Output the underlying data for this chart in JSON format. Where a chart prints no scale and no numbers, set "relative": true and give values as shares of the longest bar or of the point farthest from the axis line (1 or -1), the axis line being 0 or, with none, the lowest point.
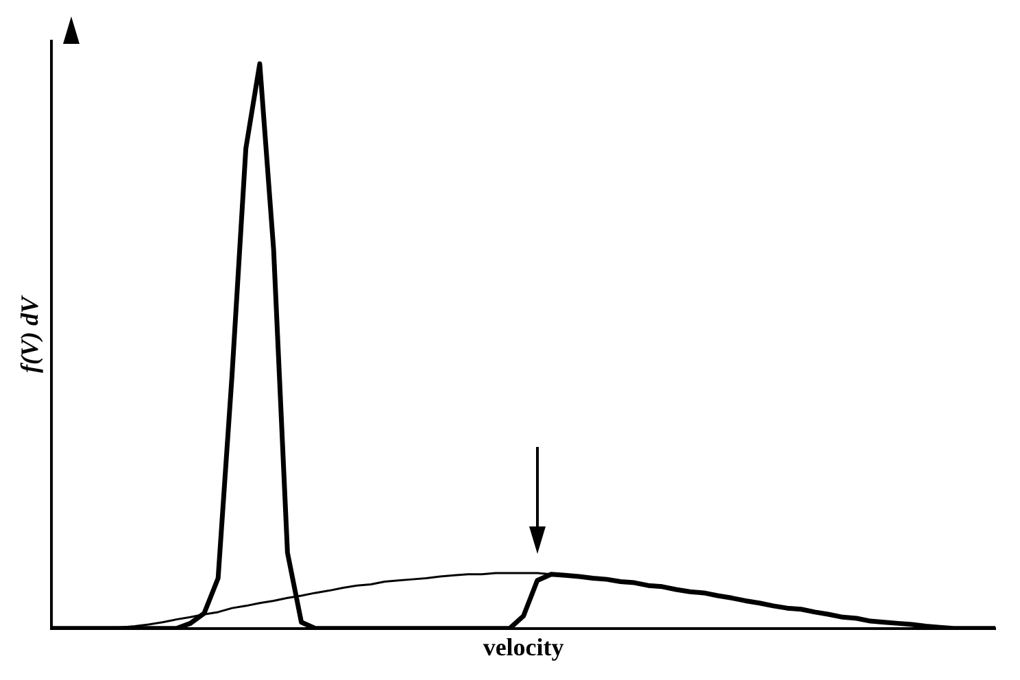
{
  "chart_data": {
    "type": "line",
    "xlabel": "velocity",
    "ylabel": "f(V) dV",
    "relative": true,
    "grid": false,
    "legend": false,
    "categories": [
      null,
      null,
      null,
      null,
      null,
      null,
      null,
      null,
      null,
      null,
      null,
      null,
      null,
      null,
      null,
      null,
      null,
      null,
      null,
      null,
      null,
      null,
      null,
      null,
      null,
      null,
      null,
      null,
      null,
      null,
      null,
      null,
      null,
      null,
      null,
      null,
      null,
      null,
      null,
      null,
      null,
      null,
      null,
      null,
      null,
      null,
      null,
      null,
      null,
      null,
      null,
      null,
      null,
      null,
      null,
      null,
      null,
      null,
      null,
      null,
      null,
      null,
      null,
      null,
      null,
      null,
      null,
      null,
      null
    ],
    "series": [
      {
        "color": "#000000",
        "line_style": "solid",
        "values": [
          0,
          0,
          0,
          0,
          0,
          0.002,
          0.004,
          0.007,
          0.011,
          0.016,
          0.02,
          0.025,
          0.029,
          0.036,
          0.04,
          0.045,
          0.049,
          0.054,
          0.058,
          0.063,
          0.067,
          0.072,
          0.076,
          0.078,
          0.083,
          0.085,
          0.087,
          0.089,
          0.092,
          0.094,
          0.096,
          0.096,
          0.098,
          0.098,
          0.098,
          0.098,
          0.096,
          0.094,
          0.092,
          0.089,
          0.087,
          0.083,
          0.081,
          0.076,
          0.074,
          0.069,
          0.065,
          0.063,
          0.058,
          0.054,
          0.049,
          0.045,
          0.04,
          0.036,
          0.034,
          0.029,
          0.025,
          0.02,
          0.018,
          0.013,
          0.011,
          0.009,
          0.007,
          0.004,
          0.002,
          0,
          0,
          0,
          0
        ]
      },
      {
        "color": "#000000",
        "line_style": "solid",
        "values": [
          0,
          0,
          0,
          0,
          0,
          0,
          0,
          0,
          0,
          0,
          0.009,
          0.027,
          0.089,
          0.447,
          0.85,
          1,
          0.671,
          0.134,
          0.011,
          0,
          0,
          0,
          0,
          0,
          0,
          0,
          0,
          0,
          0,
          0,
          0,
          0,
          0,
          0,
          0.022,
          0.085,
          0.096,
          0.094,
          0.092,
          0.089,
          0.087,
          0.083,
          0.081,
          0.076,
          0.074,
          0.069,
          0.065,
          0.063,
          0.058,
          0.054,
          0.049,
          0.045,
          0.04,
          0.036,
          0.034,
          0.029,
          0.025,
          0.02,
          0.018,
          0.013,
          0.011,
          0.009,
          0.007,
          0.004,
          0.002,
          0,
          0,
          0,
          0
        ]
      }
    ]
  }
}
